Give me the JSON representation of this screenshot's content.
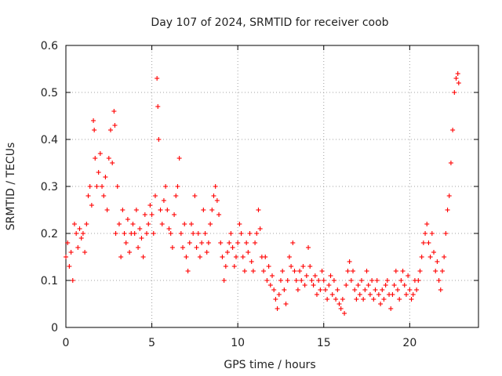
{
  "chart_data": {
    "type": "scatter",
    "title": "Day 107 of 2024, SRMTID for receiver coob",
    "xlabel": "GPS time / hours",
    "ylabel": "SRMTID / TECUs",
    "xlim": [
      0,
      24
    ],
    "ylim": [
      0,
      0.6
    ],
    "xticks": [
      "0",
      "5",
      "10",
      "15",
      "20"
    ],
    "xtick_values": [
      0,
      5,
      10,
      15,
      20
    ],
    "yticks": [
      "0",
      "0.1",
      "0.2",
      "0.3",
      "0.4",
      "0.5",
      "0.6"
    ],
    "ytick_values": [
      0,
      0.1,
      0.2,
      0.3,
      0.4,
      0.5,
      0.6
    ],
    "grid": true,
    "marker": "+",
    "marker_color": "#ff0000",
    "series": [
      {
        "name": "SRMTID",
        "points": [
          [
            0.0,
            0.15
          ],
          [
            0.1,
            0.18
          ],
          [
            0.2,
            0.13
          ],
          [
            0.3,
            0.16
          ],
          [
            0.4,
            0.1
          ],
          [
            0.5,
            0.22
          ],
          [
            0.6,
            0.2
          ],
          [
            0.7,
            0.17
          ],
          [
            0.8,
            0.21
          ],
          [
            0.9,
            0.19
          ],
          [
            1.0,
            0.2
          ],
          [
            1.1,
            0.16
          ],
          [
            1.2,
            0.22
          ],
          [
            1.3,
            0.28
          ],
          [
            1.4,
            0.3
          ],
          [
            1.5,
            0.26
          ],
          [
            1.6,
            0.44
          ],
          [
            1.65,
            0.42
          ],
          [
            1.7,
            0.36
          ],
          [
            1.8,
            0.3
          ],
          [
            1.9,
            0.33
          ],
          [
            2.0,
            0.37
          ],
          [
            2.1,
            0.3
          ],
          [
            2.2,
            0.28
          ],
          [
            2.3,
            0.32
          ],
          [
            2.4,
            0.25
          ],
          [
            2.5,
            0.36
          ],
          [
            2.6,
            0.42
          ],
          [
            2.7,
            0.35
          ],
          [
            2.8,
            0.46
          ],
          [
            2.85,
            0.43
          ],
          [
            2.9,
            0.2
          ],
          [
            3.0,
            0.3
          ],
          [
            3.1,
            0.22
          ],
          [
            3.2,
            0.15
          ],
          [
            3.3,
            0.25
          ],
          [
            3.4,
            0.2
          ],
          [
            3.5,
            0.18
          ],
          [
            3.6,
            0.23
          ],
          [
            3.7,
            0.16
          ],
          [
            3.8,
            0.2
          ],
          [
            3.9,
            0.22
          ],
          [
            4.0,
            0.2
          ],
          [
            4.1,
            0.25
          ],
          [
            4.2,
            0.17
          ],
          [
            4.3,
            0.21
          ],
          [
            4.4,
            0.19
          ],
          [
            4.5,
            0.15
          ],
          [
            4.6,
            0.24
          ],
          [
            4.7,
            0.2
          ],
          [
            4.8,
            0.22
          ],
          [
            4.9,
            0.26
          ],
          [
            5.0,
            0.24
          ],
          [
            5.1,
            0.2
          ],
          [
            5.2,
            0.28
          ],
          [
            5.3,
            0.53
          ],
          [
            5.35,
            0.47
          ],
          [
            5.4,
            0.4
          ],
          [
            5.5,
            0.25
          ],
          [
            5.6,
            0.22
          ],
          [
            5.7,
            0.27
          ],
          [
            5.8,
            0.3
          ],
          [
            5.9,
            0.25
          ],
          [
            6.0,
            0.21
          ],
          [
            6.1,
            0.2
          ],
          [
            6.2,
            0.17
          ],
          [
            6.3,
            0.24
          ],
          [
            6.4,
            0.28
          ],
          [
            6.5,
            0.3
          ],
          [
            6.6,
            0.36
          ],
          [
            6.7,
            0.2
          ],
          [
            6.8,
            0.17
          ],
          [
            6.9,
            0.22
          ],
          [
            7.0,
            0.15
          ],
          [
            7.1,
            0.12
          ],
          [
            7.2,
            0.18
          ],
          [
            7.3,
            0.22
          ],
          [
            7.4,
            0.2
          ],
          [
            7.5,
            0.28
          ],
          [
            7.6,
            0.17
          ],
          [
            7.7,
            0.2
          ],
          [
            7.8,
            0.15
          ],
          [
            7.9,
            0.18
          ],
          [
            8.0,
            0.25
          ],
          [
            8.1,
            0.2
          ],
          [
            8.2,
            0.16
          ],
          [
            8.3,
            0.18
          ],
          [
            8.4,
            0.22
          ],
          [
            8.5,
            0.25
          ],
          [
            8.6,
            0.28
          ],
          [
            8.7,
            0.3
          ],
          [
            8.8,
            0.27
          ],
          [
            8.9,
            0.24
          ],
          [
            9.0,
            0.18
          ],
          [
            9.1,
            0.15
          ],
          [
            9.2,
            0.1
          ],
          [
            9.3,
            0.13
          ],
          [
            9.4,
            0.16
          ],
          [
            9.5,
            0.18
          ],
          [
            9.6,
            0.2
          ],
          [
            9.7,
            0.17
          ],
          [
            9.8,
            0.13
          ],
          [
            9.9,
            0.15
          ],
          [
            10.0,
            0.18
          ],
          [
            10.1,
            0.22
          ],
          [
            10.2,
            0.2
          ],
          [
            10.3,
            0.15
          ],
          [
            10.4,
            0.12
          ],
          [
            10.5,
            0.18
          ],
          [
            10.6,
            0.16
          ],
          [
            10.7,
            0.2
          ],
          [
            10.8,
            0.14
          ],
          [
            10.9,
            0.12
          ],
          [
            11.0,
            0.18
          ],
          [
            11.1,
            0.2
          ],
          [
            11.2,
            0.25
          ],
          [
            11.3,
            0.21
          ],
          [
            11.4,
            0.15
          ],
          [
            11.5,
            0.12
          ],
          [
            11.6,
            0.15
          ],
          [
            11.7,
            0.1
          ],
          [
            11.8,
            0.13
          ],
          [
            11.9,
            0.09
          ],
          [
            12.0,
            0.11
          ],
          [
            12.1,
            0.08
          ],
          [
            12.2,
            0.06
          ],
          [
            12.3,
            0.04
          ],
          [
            12.4,
            0.07
          ],
          [
            12.5,
            0.1
          ],
          [
            12.6,
            0.12
          ],
          [
            12.7,
            0.08
          ],
          [
            12.8,
            0.05
          ],
          [
            12.9,
            0.1
          ],
          [
            13.0,
            0.15
          ],
          [
            13.1,
            0.13
          ],
          [
            13.2,
            0.18
          ],
          [
            13.3,
            0.12
          ],
          [
            13.4,
            0.1
          ],
          [
            13.5,
            0.08
          ],
          [
            13.6,
            0.12
          ],
          [
            13.7,
            0.1
          ],
          [
            13.8,
            0.13
          ],
          [
            13.9,
            0.09
          ],
          [
            14.0,
            0.11
          ],
          [
            14.1,
            0.17
          ],
          [
            14.2,
            0.13
          ],
          [
            14.3,
            0.1
          ],
          [
            14.4,
            0.09
          ],
          [
            14.5,
            0.11
          ],
          [
            14.6,
            0.07
          ],
          [
            14.7,
            0.1
          ],
          [
            14.8,
            0.08
          ],
          [
            14.9,
            0.12
          ],
          [
            15.0,
            0.1
          ],
          [
            15.1,
            0.08
          ],
          [
            15.2,
            0.06
          ],
          [
            15.3,
            0.09
          ],
          [
            15.4,
            0.11
          ],
          [
            15.5,
            0.07
          ],
          [
            15.6,
            0.1
          ],
          [
            15.7,
            0.06
          ],
          [
            15.8,
            0.08
          ],
          [
            15.9,
            0.05
          ],
          [
            16.0,
            0.04
          ],
          [
            16.1,
            0.06
          ],
          [
            16.2,
            0.03
          ],
          [
            16.3,
            0.09
          ],
          [
            16.4,
            0.12
          ],
          [
            16.5,
            0.14
          ],
          [
            16.6,
            0.1
          ],
          [
            16.7,
            0.12
          ],
          [
            16.8,
            0.08
          ],
          [
            16.9,
            0.06
          ],
          [
            17.0,
            0.09
          ],
          [
            17.1,
            0.07
          ],
          [
            17.2,
            0.1
          ],
          [
            17.3,
            0.06
          ],
          [
            17.4,
            0.08
          ],
          [
            17.5,
            0.12
          ],
          [
            17.6,
            0.09
          ],
          [
            17.7,
            0.07
          ],
          [
            17.8,
            0.1
          ],
          [
            17.9,
            0.06
          ],
          [
            18.0,
            0.08
          ],
          [
            18.1,
            0.1
          ],
          [
            18.2,
            0.07
          ],
          [
            18.3,
            0.05
          ],
          [
            18.4,
            0.08
          ],
          [
            18.5,
            0.06
          ],
          [
            18.6,
            0.09
          ],
          [
            18.7,
            0.1
          ],
          [
            18.8,
            0.07
          ],
          [
            18.9,
            0.04
          ],
          [
            19.0,
            0.07
          ],
          [
            19.1,
            0.09
          ],
          [
            19.2,
            0.12
          ],
          [
            19.3,
            0.08
          ],
          [
            19.4,
            0.06
          ],
          [
            19.5,
            0.1
          ],
          [
            19.6,
            0.12
          ],
          [
            19.7,
            0.09
          ],
          [
            19.8,
            0.07
          ],
          [
            19.9,
            0.11
          ],
          [
            20.0,
            0.08
          ],
          [
            20.1,
            0.06
          ],
          [
            20.2,
            0.07
          ],
          [
            20.3,
            0.1
          ],
          [
            20.4,
            0.08
          ],
          [
            20.5,
            0.1
          ],
          [
            20.6,
            0.12
          ],
          [
            20.7,
            0.15
          ],
          [
            20.8,
            0.18
          ],
          [
            20.9,
            0.2
          ],
          [
            21.0,
            0.22
          ],
          [
            21.1,
            0.18
          ],
          [
            21.2,
            0.15
          ],
          [
            21.3,
            0.2
          ],
          [
            21.4,
            0.16
          ],
          [
            21.5,
            0.12
          ],
          [
            21.6,
            0.14
          ],
          [
            21.7,
            0.1
          ],
          [
            21.8,
            0.08
          ],
          [
            21.9,
            0.12
          ],
          [
            22.0,
            0.15
          ],
          [
            22.1,
            0.2
          ],
          [
            22.2,
            0.25
          ],
          [
            22.3,
            0.28
          ],
          [
            22.4,
            0.35
          ],
          [
            22.5,
            0.42
          ],
          [
            22.6,
            0.5
          ],
          [
            22.7,
            0.53
          ],
          [
            22.8,
            0.54
          ],
          [
            22.85,
            0.52
          ]
        ]
      }
    ]
  }
}
